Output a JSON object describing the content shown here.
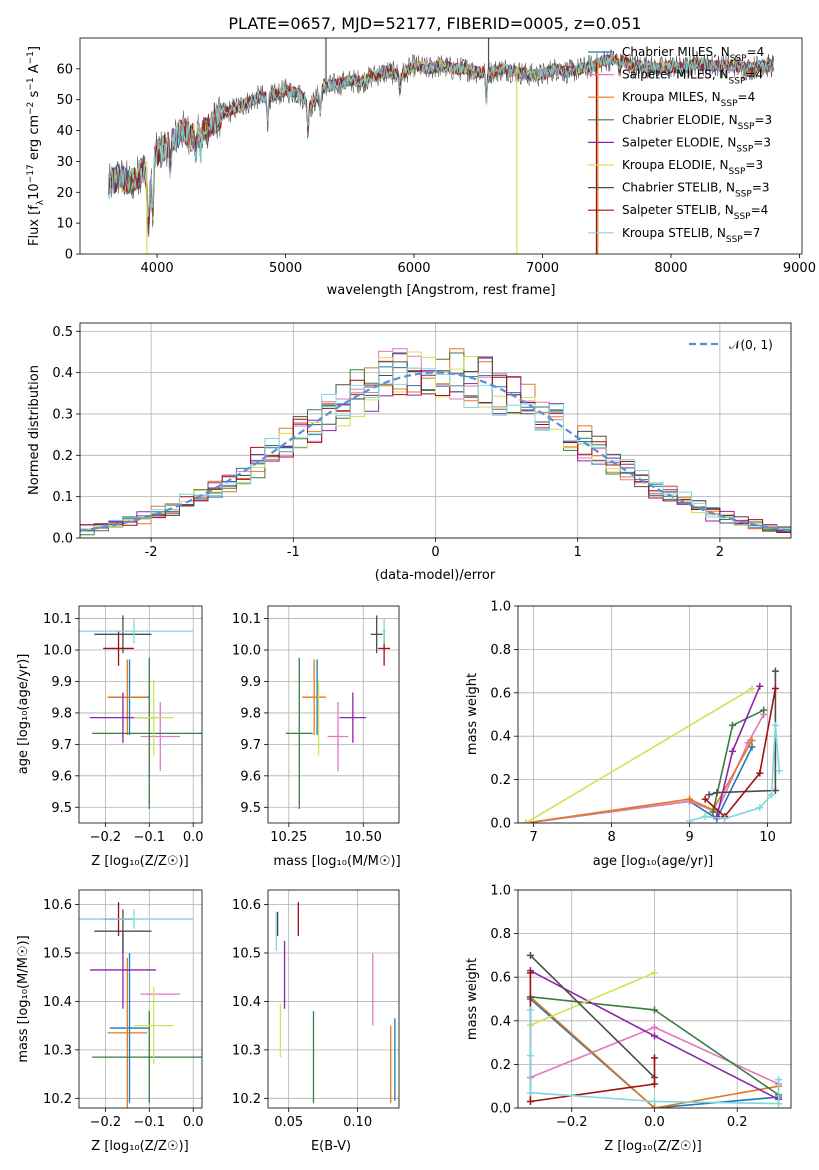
{
  "title": "PLATE=0657, MJD=52177, FIBERID=0005, z=0.051",
  "colors": {
    "Chabrier MILES": "#1f77b4",
    "Salpeter MILES": "#e377c2",
    "Kroupa MILES": "#e07a1f",
    "Chabrier ELODIE": "#3a7d44",
    "Salpeter ELODIE": "#8e24aa",
    "Kroupa ELODIE": "#d4e157",
    "Chabrier STELIB": "#4d4d4d",
    "Salpeter STELIB": "#a01010",
    "Kroupa STELIB": "#7fd8e0",
    "normal": "#5b8fd6",
    "grid": "#b0b0b0"
  },
  "legend": {
    "spectrum": [
      {
        "pre": "Chabrier MILES, N",
        "sub": "SSP",
        "post": "=4"
      },
      {
        "pre": "Salpeter MILES, N",
        "sub": "SSP",
        "post": "=4"
      },
      {
        "pre": "Kroupa MILES, N",
        "sub": "SSP",
        "post": "=4"
      },
      {
        "pre": "Chabrier ELODIE, N",
        "sub": "SSP",
        "post": "=3"
      },
      {
        "pre": "Salpeter ELODIE, N",
        "sub": "SSP",
        "post": "=3"
      },
      {
        "pre": "Kroupa ELODIE, N",
        "sub": "SSP",
        "post": "=3"
      },
      {
        "pre": "Chabrier STELIB, N",
        "sub": "SSP",
        "post": "=3"
      },
      {
        "pre": "Salpeter STELIB, N",
        "sub": "SSP",
        "post": "=4"
      },
      {
        "pre": "Kroupa STELIB, N",
        "sub": "SSP",
        "post": "=7"
      }
    ],
    "normal": "𝒩(0, 1)"
  },
  "chart_data": [
    {
      "panel": "spectrum",
      "type": "line",
      "xlabel": "wavelength [Angstrom, rest frame]",
      "ylabel_pre": "Flux [f",
      "ylabel_sub": "λ",
      "ylabel_mid": "10",
      "ylabel_sup1": "−17",
      "ylabel_post": " erg cm",
      "ylabel_sup2": "−2",
      "ylabel_post2": " s",
      "ylabel_sup3": "−1",
      "ylabel_post3": " A",
      "ylabel_sup4": "−1",
      "ylabel_end": "]",
      "xlim": [
        3400,
        9020
      ],
      "ylim": [
        0,
        70
      ],
      "xticks": [
        4000,
        5000,
        6000,
        7000,
        8000,
        9000
      ],
      "yticks": [
        0,
        10,
        20,
        30,
        40,
        50,
        60
      ],
      "anchors": [
        [
          3620,
          22
        ],
        [
          3700,
          25
        ],
        [
          3800,
          23
        ],
        [
          3900,
          28
        ],
        [
          3940,
          18
        ],
        [
          3980,
          32
        ],
        [
          4100,
          36
        ],
        [
          4200,
          40
        ],
        [
          4300,
          38
        ],
        [
          4400,
          41
        ],
        [
          4500,
          45
        ],
        [
          4600,
          47
        ],
        [
          4700,
          49
        ],
        [
          4800,
          51
        ],
        [
          4900,
          51
        ],
        [
          5000,
          53
        ],
        [
          5100,
          52
        ],
        [
          5200,
          48
        ],
        [
          5300,
          54
        ],
        [
          5400,
          55
        ],
        [
          5500,
          56
        ],
        [
          5600,
          56
        ],
        [
          5700,
          58
        ],
        [
          5800,
          59
        ],
        [
          5900,
          58
        ],
        [
          6000,
          61
        ],
        [
          6100,
          60
        ],
        [
          6200,
          61
        ],
        [
          6300,
          60
        ],
        [
          6400,
          60
        ],
        [
          6500,
          59
        ],
        [
          6600,
          59
        ],
        [
          6700,
          60
        ],
        [
          6800,
          59
        ],
        [
          6900,
          58
        ],
        [
          7000,
          58
        ],
        [
          7100,
          60
        ],
        [
          7200,
          59
        ],
        [
          7300,
          60
        ],
        [
          7400,
          61
        ],
        [
          7500,
          63
        ],
        [
          7600,
          63
        ],
        [
          7700,
          61
        ],
        [
          7800,
          61
        ],
        [
          7900,
          60
        ],
        [
          8000,
          61
        ],
        [
          8100,
          60
        ],
        [
          8200,
          62
        ],
        [
          8300,
          61
        ],
        [
          8400,
          61
        ],
        [
          8500,
          61
        ],
        [
          8600,
          60
        ],
        [
          8700,
          61
        ],
        [
          8800,
          61
        ]
      ],
      "absorption": [
        [
          3933,
          12
        ],
        [
          3968,
          14
        ],
        [
          4101,
          8
        ],
        [
          4300,
          6
        ],
        [
          4340,
          6
        ],
        [
          4861,
          8
        ],
        [
          5175,
          9
        ],
        [
          5270,
          6
        ],
        [
          5890,
          6
        ],
        [
          6563,
          10
        ],
        [
          7600,
          4
        ]
      ],
      "glitches": [
        {
          "series": "Kroupa ELODIE",
          "x": 3920,
          "y0": 30,
          "y1": 0
        },
        {
          "series": "Kroupa ELODIE",
          "x": 6800,
          "y0": 60,
          "y1": 0
        },
        {
          "series": "Salpeter STELIB",
          "x": 7420,
          "y0": 62,
          "y1": 0
        },
        {
          "series": "Kroupa MILES",
          "x": 7430,
          "y0": 62,
          "y1": 0
        },
        {
          "series": "Chabrier STELIB",
          "x": 5315,
          "y0": 55,
          "y1": 70
        },
        {
          "series": "Chabrier STELIB",
          "x": 6580,
          "y0": 60,
          "y1": 70
        }
      ]
    },
    {
      "panel": "residuals",
      "type": "step",
      "xlabel": "(data-model)/error",
      "ylabel": "Normed distribution",
      "xlim": [
        -2.5,
        2.5
      ],
      "ylim": [
        0,
        0.52
      ],
      "xticks": [
        -2,
        -1,
        0,
        1,
        2
      ],
      "yticks": [
        0.0,
        0.1,
        0.2,
        0.3,
        0.4,
        0.5
      ],
      "bin_width": 0.1,
      "sigma": 1.0,
      "normal_peak": 0.4
    },
    {
      "panel": "age_vs_Z",
      "type": "errorbar",
      "xlabel": "Z [log₁₀(Z/Z☉)]",
      "ylabel": "age  [log₁₀(age/yr)]",
      "xlim": [
        -0.26,
        0.02
      ],
      "ylim": [
        9.45,
        10.14
      ],
      "xticks": [
        -0.2,
        -0.1,
        0.0
      ],
      "xticklabels": [
        "−0.2",
        "−0.1",
        "0.0"
      ],
      "yticks": [
        9.5,
        9.6,
        9.7,
        9.8,
        9.9,
        10.0,
        10.1
      ],
      "points": [
        {
          "s": "Chabrier MILES",
          "x": -0.145,
          "y": 9.85,
          "xe": 0.045,
          "ye": 0.12
        },
        {
          "s": "Salpeter MILES",
          "x": -0.075,
          "y": 9.725,
          "xe": 0.045,
          "ye": 0.11
        },
        {
          "s": "Kroupa MILES",
          "x": -0.15,
          "y": 9.85,
          "xe": 0.045,
          "ye": 0.12
        },
        {
          "s": "Chabrier ELODIE",
          "x": -0.1,
          "y": 9.735,
          "xe": 0.13,
          "ye": 0.24
        },
        {
          "s": "Salpeter ELODIE",
          "x": -0.16,
          "y": 9.785,
          "xe": 0.075,
          "ye": 0.08
        },
        {
          "s": "Kroupa ELODIE",
          "x": -0.09,
          "y": 9.785,
          "xe": 0.045,
          "ye": 0.12
        },
        {
          "s": "Chabrier STELIB",
          "x": -0.16,
          "y": 10.05,
          "xe": 0.065,
          "ye": 0.06
        },
        {
          "s": "Salpeter STELIB",
          "x": -0.17,
          "y": 10.005,
          "xe": 0.035,
          "ye": 0.055
        },
        {
          "s": "Kroupa STELIB",
          "x": -0.135,
          "y": 10.06,
          "xe": 0.135,
          "ye": 0.04
        }
      ]
    },
    {
      "panel": "age_vs_mass",
      "type": "errorbar",
      "xlabel": "mass [log₁₀(M/M☉)]",
      "xlim": [
        10.18,
        10.62
      ],
      "ylim": [
        9.45,
        10.14
      ],
      "xticks": [
        10.25,
        10.5
      ],
      "xticklabels": [
        "10.25",
        "10.50"
      ],
      "yticks": [
        9.5,
        9.6,
        9.7,
        9.8,
        9.9,
        10.0,
        10.1
      ],
      "points": [
        {
          "s": "Chabrier MILES",
          "x": 10.345,
          "y": 9.85,
          "xe": 0.0,
          "ye": 0.12
        },
        {
          "s": "Salpeter MILES",
          "x": 10.415,
          "y": 9.725,
          "xe": 0.035,
          "ye": 0.11
        },
        {
          "s": "Kroupa MILES",
          "x": 10.335,
          "y": 9.85,
          "xe": 0.04,
          "ye": 0.12
        },
        {
          "s": "Chabrier ELODIE",
          "x": 10.285,
          "y": 9.735,
          "xe": 0.045,
          "ye": 0.24
        },
        {
          "s": "Salpeter ELODIE",
          "x": 10.465,
          "y": 9.785,
          "xe": 0.045,
          "ye": 0.08
        },
        {
          "s": "Kroupa ELODIE",
          "x": 10.35,
          "y": 9.785,
          "xe": 0.0,
          "ye": 0.12
        },
        {
          "s": "Chabrier STELIB",
          "x": 10.545,
          "y": 10.05,
          "xe": 0.02,
          "ye": 0.06
        },
        {
          "s": "Salpeter STELIB",
          "x": 10.57,
          "y": 10.005,
          "xe": 0.02,
          "ye": 0.055
        },
        {
          "s": "Kroupa STELIB",
          "x": 10.57,
          "y": 10.06,
          "xe": 0.005,
          "ye": 0.04
        }
      ]
    },
    {
      "panel": "weight_vs_age",
      "type": "line",
      "xlabel": "age  [log₁₀(age/yr)]",
      "ylabel": "mass weight",
      "xlim": [
        6.8,
        10.3
      ],
      "ylim": [
        0,
        1
      ],
      "xticks": [
        7,
        8,
        9,
        10
      ],
      "yticks": [
        0.0,
        0.2,
        0.4,
        0.6,
        0.8,
        1.0
      ],
      "series": [
        {
          "s": "Chabrier MILES",
          "x": [
            6.9,
            9.0,
            9.35,
            9.8
          ],
          "y": [
            0.0,
            0.1,
            0.02,
            0.35
          ]
        },
        {
          "s": "Salpeter MILES",
          "x": [
            6.9,
            9.0,
            9.35,
            9.75,
            9.95
          ],
          "y": [
            0.0,
            0.1,
            0.05,
            0.37,
            0.5
          ]
        },
        {
          "s": "Kroupa MILES",
          "x": [
            6.9,
            9.0,
            9.3,
            9.8
          ],
          "y": [
            0.0,
            0.11,
            0.06,
            0.38
          ]
        },
        {
          "s": "Chabrier ELODIE",
          "x": [
            9.3,
            9.55,
            9.95
          ],
          "y": [
            0.05,
            0.45,
            0.52
          ]
        },
        {
          "s": "Salpeter ELODIE",
          "x": [
            9.35,
            9.55,
            9.9
          ],
          "y": [
            0.03,
            0.33,
            0.63
          ]
        },
        {
          "s": "Kroupa ELODIE",
          "x": [
            6.9,
            9.8
          ],
          "y": [
            0.0,
            0.62
          ]
        },
        {
          "s": "Chabrier STELIB",
          "x": [
            9.25,
            9.35,
            10.1,
            10.1
          ],
          "y": [
            0.13,
            0.14,
            0.15,
            0.7
          ]
        },
        {
          "s": "Salpeter STELIB",
          "x": [
            9.2,
            9.45,
            9.9,
            10.1
          ],
          "y": [
            0.11,
            0.03,
            0.23,
            0.62
          ]
        },
        {
          "s": "Kroupa STELIB",
          "x": [
            9.0,
            9.2,
            9.45,
            9.9,
            10.05,
            10.1,
            10.15
          ],
          "y": [
            0.01,
            0.03,
            0.02,
            0.07,
            0.13,
            0.45,
            0.24
          ]
        }
      ]
    },
    {
      "panel": "mass_vs_Z",
      "type": "errorbar",
      "xlabel": "Z [log₁₀(Z/Z☉)]",
      "ylabel": "mass [log₁₀(M/M☉)]",
      "xlim": [
        -0.26,
        0.02
      ],
      "ylim": [
        10.18,
        10.63
      ],
      "xticks": [
        -0.2,
        -0.1,
        0.0
      ],
      "xticklabels": [
        "−0.2",
        "−0.1",
        "0.0"
      ],
      "yticks": [
        10.2,
        10.3,
        10.4,
        10.5,
        10.6
      ],
      "points": [
        {
          "s": "Chabrier MILES",
          "x": -0.145,
          "y": 10.345,
          "xe": 0.045,
          "ye": 0.155
        },
        {
          "s": "Salpeter MILES",
          "x": -0.075,
          "y": 10.415,
          "xe": 0.045,
          "ye": 0.0
        },
        {
          "s": "Kroupa MILES",
          "x": -0.15,
          "y": 10.335,
          "xe": 0.045,
          "ye": 0.155
        },
        {
          "s": "Chabrier ELODIE",
          "x": -0.1,
          "y": 10.285,
          "xe": 0.13,
          "ye": 0.095
        },
        {
          "s": "Salpeter ELODIE",
          "x": -0.16,
          "y": 10.465,
          "xe": 0.075,
          "ye": 0.08
        },
        {
          "s": "Kroupa ELODIE",
          "x": -0.09,
          "y": 10.35,
          "xe": 0.045,
          "ye": 0.08
        },
        {
          "s": "Chabrier STELIB",
          "x": -0.16,
          "y": 10.545,
          "xe": 0.065,
          "ye": 0.045
        },
        {
          "s": "Salpeter STELIB",
          "x": -0.17,
          "y": 10.57,
          "xe": 0.035,
          "ye": 0.035
        },
        {
          "s": "Kroupa STELIB",
          "x": -0.135,
          "y": 10.57,
          "xe": 0.135,
          "ye": 0.02
        }
      ]
    },
    {
      "panel": "mass_vs_ebv",
      "type": "errorbar",
      "xlabel": "E(B-V)",
      "xlim": [
        0.035,
        0.13
      ],
      "ylim": [
        10.18,
        10.63
      ],
      "xticks": [
        0.05,
        0.1
      ],
      "xticklabels": [
        "0.05",
        "0.10"
      ],
      "yticks": [
        10.2,
        10.3,
        10.4,
        10.5,
        10.6
      ],
      "points": [
        {
          "s": "Chabrier MILES",
          "x": 0.127,
          "y": 10.28,
          "xe": 0,
          "ye": 0.085
        },
        {
          "s": "Salpeter MILES",
          "x": 0.111,
          "y": 10.425,
          "xe": 0,
          "ye": 0.075
        },
        {
          "s": "Kroupa MILES",
          "x": 0.124,
          "y": 10.27,
          "xe": 0,
          "ye": 0.08
        },
        {
          "s": "Chabrier ELODIE",
          "x": 0.068,
          "y": 10.285,
          "xe": 0,
          "ye": 0.095
        },
        {
          "s": "Salpeter ELODIE",
          "x": 0.047,
          "y": 10.455,
          "xe": 0,
          "ye": 0.07
        },
        {
          "s": "Kroupa ELODIE",
          "x": 0.044,
          "y": 10.34,
          "xe": 0,
          "ye": 0.055
        },
        {
          "s": "Chabrier STELIB",
          "x": 0.042,
          "y": 10.56,
          "xe": 0,
          "ye": 0.025
        },
        {
          "s": "Salpeter STELIB",
          "x": 0.057,
          "y": 10.57,
          "xe": 0,
          "ye": 0.035
        },
        {
          "s": "Kroupa STELIB",
          "x": 0.041,
          "y": 10.545,
          "xe": 0,
          "ye": 0.04
        }
      ]
    },
    {
      "panel": "weight_vs_Z",
      "type": "line",
      "xlabel": "Z [log₁₀(Z/Z☉)]",
      "ylabel": "mass weight",
      "xlim": [
        -0.33,
        0.33
      ],
      "ylim": [
        0,
        1
      ],
      "xticks": [
        -0.2,
        0.0,
        0.2
      ],
      "xticklabels": [
        "−0.2",
        "0.0",
        "0.2"
      ],
      "yticks": [
        0.0,
        0.2,
        0.4,
        0.6,
        0.8,
        1.0
      ],
      "series": [
        {
          "s": "Chabrier MILES",
          "x": [
            -0.3,
            0.0,
            0.3
          ],
          "y": [
            0.5,
            0.0,
            0.05
          ]
        },
        {
          "s": "Salpeter MILES",
          "x": [
            -0.3,
            0.0,
            0.3
          ],
          "y": [
            0.14,
            0.37,
            0.11
          ]
        },
        {
          "s": "Kroupa MILES",
          "x": [
            -0.3,
            0.0,
            0.3
          ],
          "y": [
            0.51,
            0.0,
            0.1
          ]
        },
        {
          "s": "Chabrier ELODIE",
          "x": [
            -0.3,
            0.0,
            0.3
          ],
          "y": [
            0.51,
            0.45,
            0.06
          ]
        },
        {
          "s": "Salpeter ELODIE",
          "x": [
            -0.3,
            0.0,
            0.3
          ],
          "y": [
            0.63,
            0.33,
            0.04
          ]
        },
        {
          "s": "Kroupa ELODIE",
          "x": [
            -0.3,
            0.0
          ],
          "y": [
            0.38,
            0.62
          ]
        },
        {
          "s": "Chabrier STELIB",
          "x": [
            -0.3,
            0.0
          ],
          "y": [
            0.7,
            0.14
          ]
        },
        {
          "s": "Salpeter STELIB",
          "x": [
            -0.3,
            -0.3,
            0.0,
            0.0
          ],
          "y": [
            0.62,
            0.03,
            0.11,
            0.23
          ]
        },
        {
          "s": "Kroupa STELIB",
          "x": [
            -0.3,
            -0.3,
            -0.3,
            0.0,
            0.3,
            0.3
          ],
          "y": [
            0.45,
            0.24,
            0.07,
            0.03,
            0.02,
            0.13
          ]
        }
      ]
    }
  ]
}
